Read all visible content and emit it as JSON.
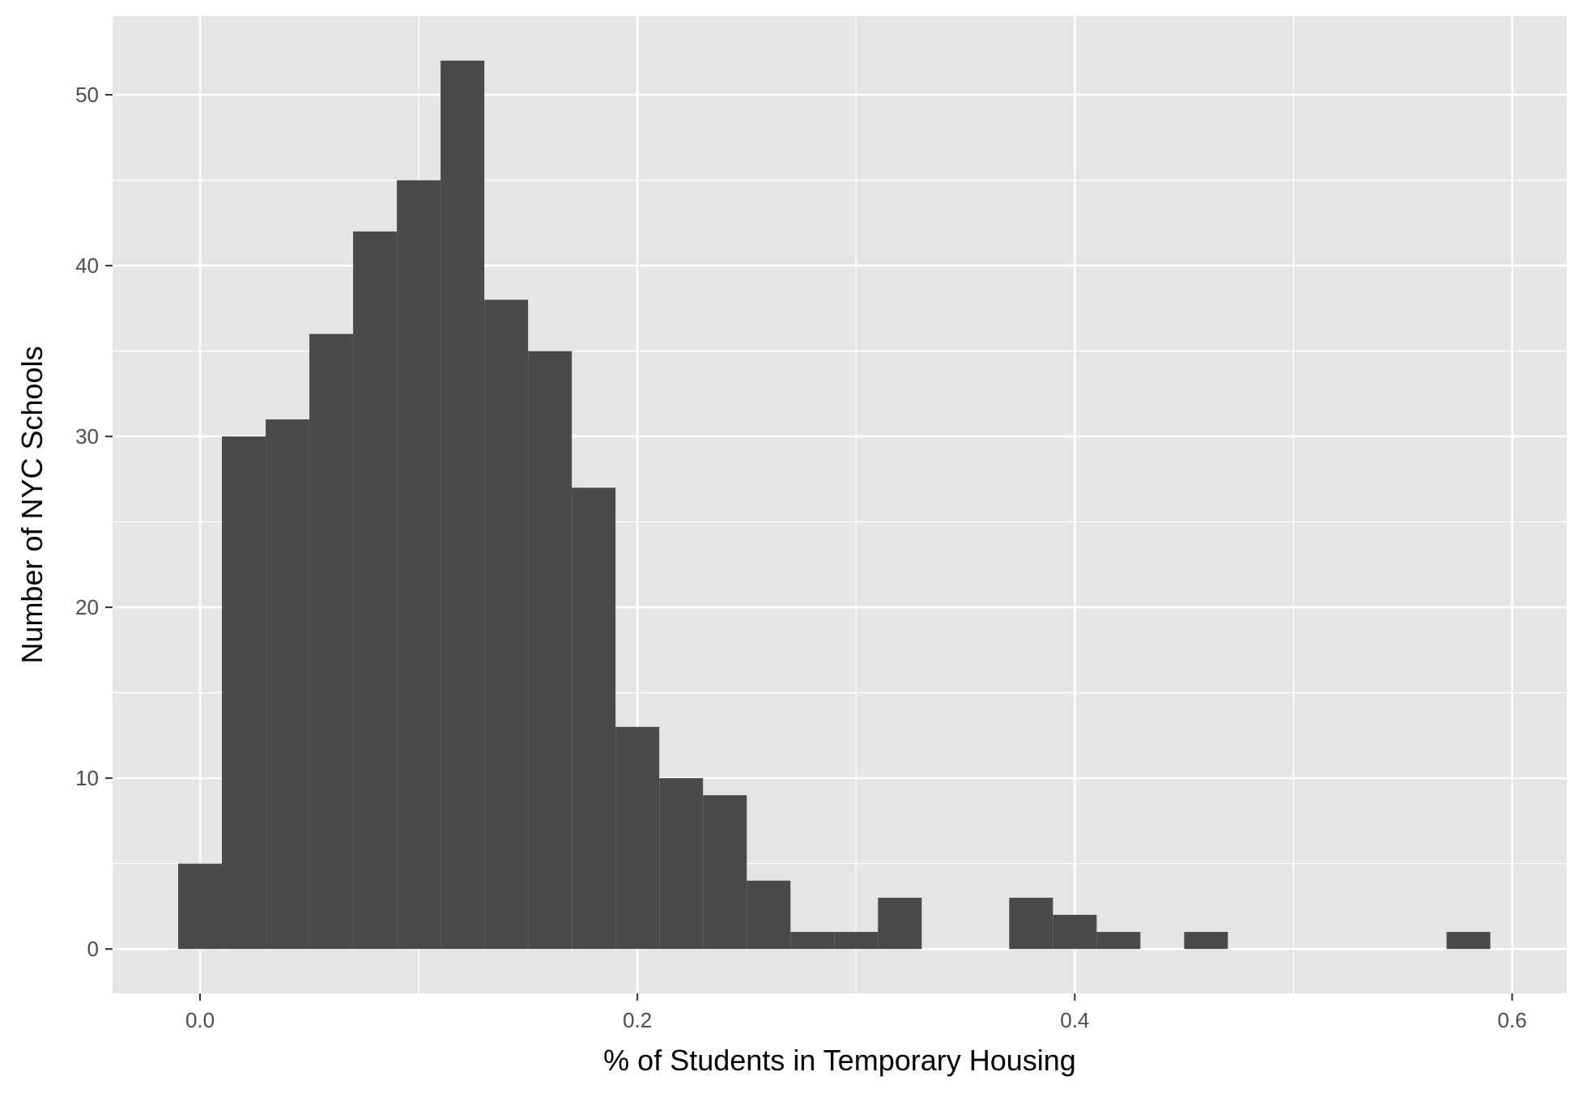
{
  "chart_data": {
    "type": "bar",
    "subtype": "histogram",
    "title": "",
    "xlabel": "% of Students in Temporary Housing",
    "ylabel": "Number of NYC Schools",
    "bin_width": 0.02,
    "bins": [
      {
        "center": 0.0,
        "count": 5
      },
      {
        "center": 0.02,
        "count": 30
      },
      {
        "center": 0.04,
        "count": 31
      },
      {
        "center": 0.06,
        "count": 36
      },
      {
        "center": 0.08,
        "count": 42
      },
      {
        "center": 0.1,
        "count": 45
      },
      {
        "center": 0.12,
        "count": 52
      },
      {
        "center": 0.14,
        "count": 38
      },
      {
        "center": 0.16,
        "count": 35
      },
      {
        "center": 0.18,
        "count": 27
      },
      {
        "center": 0.2,
        "count": 13
      },
      {
        "center": 0.22,
        "count": 10
      },
      {
        "center": 0.24,
        "count": 9
      },
      {
        "center": 0.26,
        "count": 4
      },
      {
        "center": 0.28,
        "count": 1
      },
      {
        "center": 0.3,
        "count": 1
      },
      {
        "center": 0.32,
        "count": 3
      },
      {
        "center": 0.34,
        "count": 0
      },
      {
        "center": 0.36,
        "count": 0
      },
      {
        "center": 0.38,
        "count": 3
      },
      {
        "center": 0.4,
        "count": 2
      },
      {
        "center": 0.42,
        "count": 1
      },
      {
        "center": 0.44,
        "count": 0
      },
      {
        "center": 0.46,
        "count": 1
      },
      {
        "center": 0.48,
        "count": 0
      },
      {
        "center": 0.5,
        "count": 0
      },
      {
        "center": 0.52,
        "count": 0
      },
      {
        "center": 0.54,
        "count": 0
      },
      {
        "center": 0.56,
        "count": 0
      },
      {
        "center": 0.58,
        "count": 1
      }
    ],
    "x_ticks": [
      0.0,
      0.2,
      0.4,
      0.6
    ],
    "x_tick_labels": [
      "0.0",
      "0.2",
      "0.4",
      "0.6"
    ],
    "y_ticks": [
      0,
      10,
      20,
      30,
      40,
      50
    ],
    "y_tick_labels": [
      "0",
      "10",
      "20",
      "30",
      "40",
      "50"
    ],
    "xlim": [
      -0.04,
      0.625
    ],
    "ylim": [
      -2.6,
      54.6
    ],
    "grid": true,
    "legend": "none",
    "colors": {
      "panel": "#e5e5e5",
      "grid": "#ffffff",
      "bar": "#4a4a4a",
      "tick_text": "#4d4d4d",
      "tick_mark": "#333333",
      "title_text": "#000000"
    }
  }
}
